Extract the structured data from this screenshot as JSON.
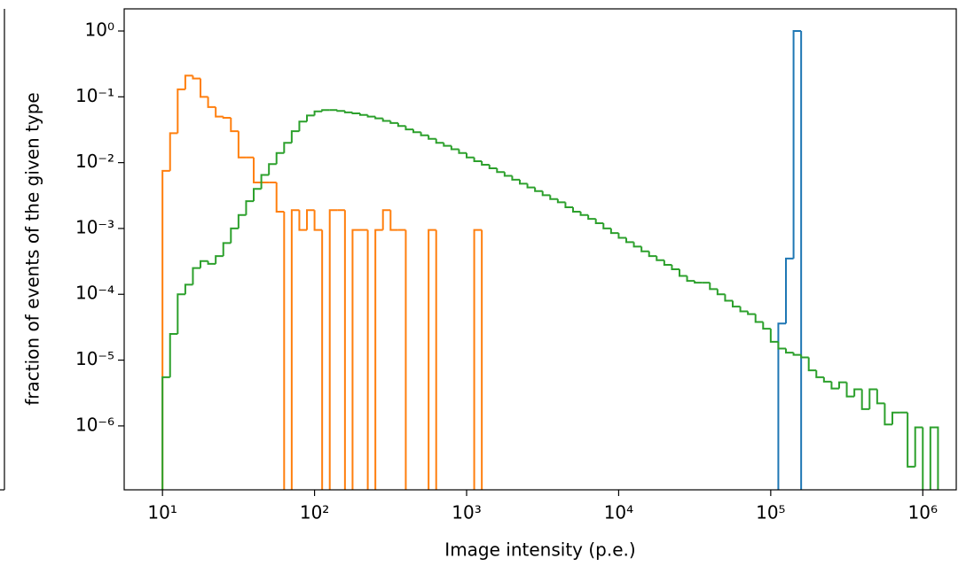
{
  "chart_data": {
    "type": "histogram",
    "xlabel": "Image intensity (p.e.)",
    "ylabel": "fraction of events of the given type",
    "xscale": "log",
    "yscale": "log",
    "xlim": [
      5.6,
      1660000
    ],
    "ylim": [
      1.07e-07,
      2.17
    ],
    "xticks": [
      {
        "value": 10,
        "label": "10¹"
      },
      {
        "value": 100,
        "label": "10²"
      },
      {
        "value": 1000,
        "label": "10³"
      },
      {
        "value": 10000,
        "label": "10⁴"
      },
      {
        "value": 100000,
        "label": "10⁵"
      },
      {
        "value": 1000000,
        "label": "10⁶"
      }
    ],
    "yticks": [
      {
        "value": 1,
        "label": "10⁰"
      },
      {
        "value": 0.1,
        "label": "10⁻¹"
      },
      {
        "value": 0.01,
        "label": "10⁻²"
      },
      {
        "value": 0.001,
        "label": "10⁻³"
      },
      {
        "value": 0.0001,
        "label": "10⁻⁴"
      },
      {
        "value": 1e-05,
        "label": "10⁻⁵"
      },
      {
        "value": 1e-06,
        "label": "10⁻⁶"
      }
    ],
    "bins": [
      10,
      11.22,
      12.59,
      14.13,
      15.85,
      17.78,
      19.95,
      22.39,
      25.12,
      28.18,
      31.62,
      35.48,
      39.81,
      44.67,
      50.12,
      56.23,
      63.1,
      70.79,
      79.43,
      89.13,
      100,
      112.2,
      125.9,
      141.3,
      158.5,
      177.8,
      199.5,
      223.9,
      251.2,
      281.8,
      316.2,
      354.8,
      398.1,
      446.7,
      501.2,
      562.3,
      631,
      707.9,
      794.3,
      891.3,
      1000,
      1122,
      1259,
      1413,
      1585,
      1778,
      1995,
      2239,
      2512,
      2818,
      3162,
      3548,
      3981,
      4467,
      5012,
      5623,
      6310,
      7079,
      7943,
      8913,
      10000,
      11220,
      12590,
      14130,
      15850,
      17780,
      19950,
      22390,
      25120,
      28180,
      31620,
      35480,
      39810,
      44670,
      50120,
      56230,
      63100,
      70790,
      79430,
      89130,
      100000,
      112200,
      125900,
      141300,
      158500,
      177800,
      199500,
      223900,
      251200,
      281800,
      316200,
      354800,
      398100,
      446700,
      501200,
      562300,
      631000,
      707900,
      794300,
      891300,
      1000000,
      1122000,
      1259000
    ],
    "series": [
      {
        "color": "#1f77b4",
        "values": [
          0,
          0,
          0,
          0,
          0,
          0,
          0,
          0,
          0,
          0,
          0,
          0,
          0,
          0,
          0,
          0,
          0,
          0,
          0,
          0,
          0,
          0,
          0,
          0,
          0,
          0,
          0,
          0,
          0,
          0,
          0,
          0,
          0,
          0,
          0,
          0,
          0,
          0,
          0,
          0,
          0,
          0,
          0,
          0,
          0,
          0,
          0,
          0,
          0,
          0,
          0,
          0,
          0,
          0,
          0,
          0,
          0,
          0,
          0,
          0,
          0,
          0,
          0,
          0,
          0,
          0,
          0,
          0,
          0,
          0,
          0,
          0,
          0,
          0,
          0,
          0,
          0,
          0,
          0,
          0,
          0,
          3.6e-05,
          0.00035,
          1.0,
          0,
          0,
          0,
          0,
          0,
          0,
          0,
          0,
          0,
          0,
          0,
          0,
          0,
          0,
          0,
          0,
          0,
          0
        ]
      },
      {
        "color": "#ff7f0e",
        "values": [
          0.0075,
          0.028,
          0.13,
          0.21,
          0.19,
          0.1,
          0.07,
          0.05,
          0.048,
          0.03,
          0.012,
          0.012,
          0.005,
          0.005,
          0.005,
          0.0018,
          0,
          0.0019,
          0.00095,
          0.0019,
          0.00095,
          0,
          0.0019,
          0.0019,
          0,
          0.00095,
          0.00095,
          0,
          0.00095,
          0.0019,
          0.00095,
          0.00095,
          0,
          0,
          0,
          0.00095,
          0,
          0,
          0,
          0,
          0,
          0.00095,
          0,
          0,
          0,
          0,
          0,
          0,
          0,
          0,
          0,
          0,
          0,
          0,
          0,
          0,
          0,
          0,
          0,
          0,
          0,
          0,
          0,
          0,
          0,
          0,
          0,
          0,
          0,
          0,
          0,
          0,
          0,
          0,
          0,
          0,
          0,
          0,
          0,
          0,
          0,
          0,
          0,
          0,
          0,
          0,
          0,
          0,
          0,
          0,
          0,
          0,
          0,
          0,
          0,
          0,
          0,
          0,
          0,
          0,
          0,
          0
        ]
      },
      {
        "color": "#2ca02c",
        "values": [
          5.5e-06,
          2.5e-05,
          0.0001,
          0.00014,
          0.00025,
          0.00032,
          0.00029,
          0.00038,
          0.0006,
          0.001,
          0.0016,
          0.0026,
          0.004,
          0.0065,
          0.0095,
          0.014,
          0.02,
          0.03,
          0.042,
          0.052,
          0.06,
          0.063,
          0.063,
          0.061,
          0.058,
          0.056,
          0.053,
          0.05,
          0.047,
          0.043,
          0.04,
          0.036,
          0.032,
          0.029,
          0.026,
          0.023,
          0.02,
          0.018,
          0.016,
          0.014,
          0.012,
          0.0105,
          0.0093,
          0.0082,
          0.0072,
          0.0063,
          0.0055,
          0.0048,
          0.0042,
          0.0037,
          0.0032,
          0.0028,
          0.0025,
          0.0021,
          0.0018,
          0.0016,
          0.0014,
          0.0012,
          0.001,
          0.00085,
          0.00072,
          0.00062,
          0.00053,
          0.00045,
          0.00038,
          0.00033,
          0.00028,
          0.00024,
          0.00019,
          0.00016,
          0.00015,
          0.00015,
          0.00012,
          0.0001,
          8e-05,
          6.5e-05,
          5.5e-05,
          5e-05,
          3.8e-05,
          3e-05,
          1.9e-05,
          1.5e-05,
          1.3e-05,
          1.2e-05,
          1.1e-05,
          7e-06,
          5.5e-06,
          4.7e-06,
          3.7e-06,
          4.6e-06,
          2.8e-06,
          3.6e-06,
          1.8e-06,
          3.6e-06,
          2.2e-06,
          1.05e-06,
          1.6e-06,
          1.6e-06,
          2.4e-07,
          9.5e-07,
          0,
          9.5e-07
        ]
      }
    ]
  }
}
